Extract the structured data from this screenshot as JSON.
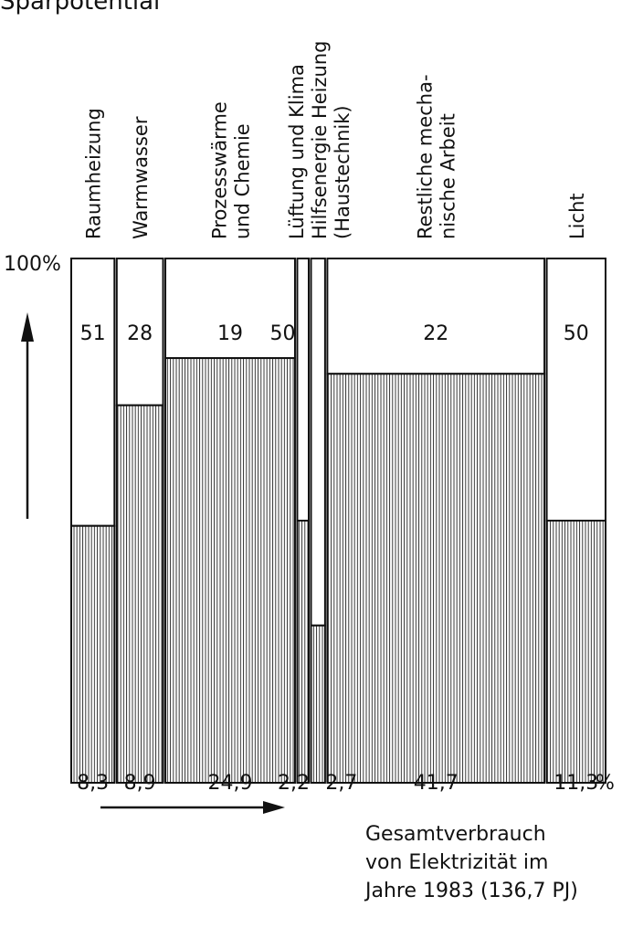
{
  "chart_data": {
    "type": "bar",
    "subtype": "variable-width stacked (Marimekko)",
    "title": "Sparpotential",
    "y_axis_top_label": "100%",
    "x_unit_label": "%",
    "ylim": [
      0,
      100
    ],
    "categories": [
      {
        "label_lines": [
          "Raumheizung"
        ],
        "share": 8.3,
        "share_label": "8,3",
        "savings": 51,
        "savings_label": "51"
      },
      {
        "label_lines": [
          "Warmwasser"
        ],
        "share": 8.9,
        "share_label": "8,9",
        "savings": 28,
        "savings_label": "28"
      },
      {
        "label_lines": [
          "Prozesswärme",
          "und Chemie"
        ],
        "share": 24.9,
        "share_label": "24,9",
        "savings": 19,
        "savings_label": "19"
      },
      {
        "label_lines": [
          "Lüftung und Klima"
        ],
        "share": 2.2,
        "share_label": "2,2",
        "savings": 50,
        "savings_label": "50"
      },
      {
        "label_lines": [
          "Hilfsenergie Heizung",
          "(Haustechnik)"
        ],
        "share": 2.7,
        "share_label": "2,7",
        "savings": 70,
        "savings_label": "70"
      },
      {
        "label_lines": [
          "Restliche mecha-",
          "nische Arbeit"
        ],
        "share": 41.7,
        "share_label": "41,7",
        "savings": 22,
        "savings_label": "22"
      },
      {
        "label_lines": [
          "Licht"
        ],
        "share": 11.3,
        "share_label": "11,3",
        "savings": 50,
        "savings_label": "50"
      }
    ],
    "footer_lines": [
      "Gesamtverbrauch",
      "von Elektrizität im",
      "Jahre 1983 (136,7 PJ)"
    ]
  }
}
